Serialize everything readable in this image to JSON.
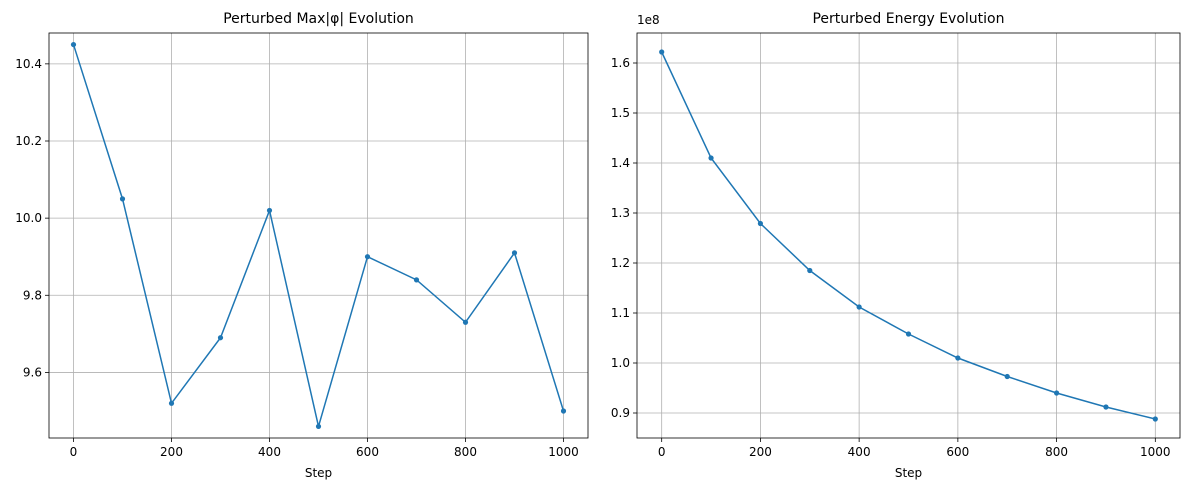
{
  "chart_data": [
    {
      "type": "line",
      "title": "Perturbed Max|φ| Evolution",
      "xlabel": "Step",
      "ylabel": "",
      "x": [
        0,
        100,
        200,
        300,
        400,
        500,
        600,
        700,
        800,
        900,
        1000
      ],
      "series": [
        {
          "values": [
            10.45,
            10.05,
            9.52,
            9.69,
            10.02,
            9.46,
            9.9,
            9.84,
            9.73,
            9.91,
            9.5
          ]
        }
      ],
      "xticks": [
        0,
        200,
        400,
        600,
        800,
        1000
      ],
      "xtick_labels": [
        "0",
        "200",
        "400",
        "600",
        "800",
        "1000"
      ],
      "yticks": [
        9.6,
        9.8,
        10.0,
        10.2,
        10.4
      ],
      "ytick_labels": [
        "9.6",
        "9.8",
        "10.0",
        "10.2",
        "10.4"
      ],
      "xlim": [
        -50,
        1050
      ],
      "ylim": [
        9.43,
        10.48
      ],
      "offset_text": "",
      "grid": true,
      "color": "#1f77b4"
    },
    {
      "type": "line",
      "title": "Perturbed Energy Evolution",
      "xlabel": "Step",
      "ylabel": "",
      "x": [
        0,
        100,
        200,
        300,
        400,
        500,
        600,
        700,
        800,
        900,
        1000
      ],
      "series": [
        {
          "values": [
            1.622,
            1.41,
            1.279,
            1.185,
            1.112,
            1.058,
            1.01,
            0.973,
            0.94,
            0.912,
            0.888
          ]
        }
      ],
      "xticks": [
        0,
        200,
        400,
        600,
        800,
        1000
      ],
      "xtick_labels": [
        "0",
        "200",
        "400",
        "600",
        "800",
        "1000"
      ],
      "yticks": [
        0.9,
        1.0,
        1.1,
        1.2,
        1.3,
        1.4,
        1.5,
        1.6
      ],
      "ytick_labels": [
        "0.9",
        "1.0",
        "1.1",
        "1.2",
        "1.3",
        "1.4",
        "1.5",
        "1.6"
      ],
      "xlim": [
        -50,
        1050
      ],
      "ylim": [
        0.85,
        1.66
      ],
      "offset_text": "1e8",
      "grid": true,
      "color": "#1f77b4"
    }
  ]
}
